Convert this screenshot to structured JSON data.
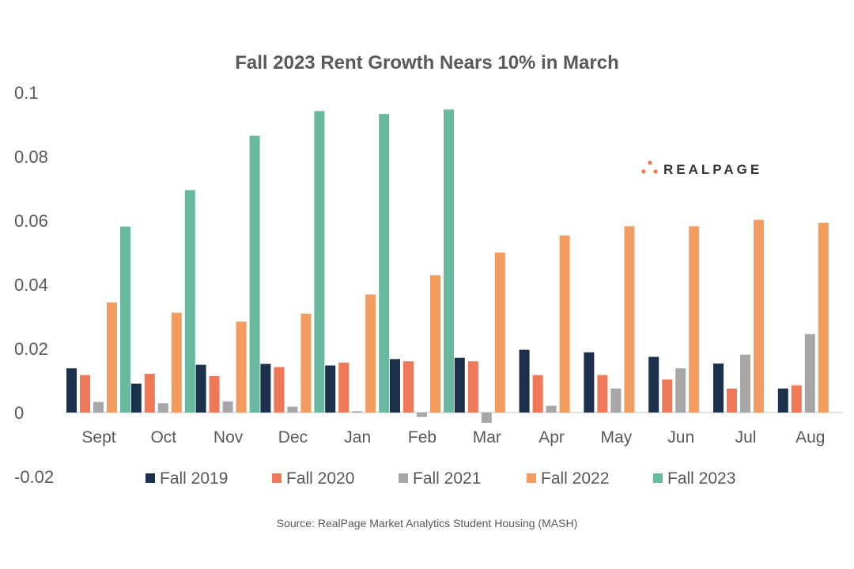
{
  "chart_data": {
    "type": "bar",
    "title": "Fall 2023 Rent Growth Nears 10% in March",
    "source": "Source: RealPage Market Analytics Student Housing (MASH)",
    "logo_text": "REALPAGE",
    "xlabel": "",
    "ylabel": "",
    "ylim": [
      -0.02,
      0.1
    ],
    "yticks": [
      "0.1",
      "0.08",
      "0.06",
      "0.04",
      "0.02",
      "0",
      "-0.02"
    ],
    "ytick_values": [
      0.1,
      0.08,
      0.06,
      0.04,
      0.02,
      0,
      -0.02
    ],
    "grid": false,
    "legend_position": "bottom",
    "categories": [
      "Sept",
      "Oct",
      "Nov",
      "Dec",
      "Jan",
      "Feb",
      "Mar",
      "Apr",
      "May",
      "Jun",
      "Jul",
      "Aug"
    ],
    "series": [
      {
        "name": "Fall 2019",
        "color": "#1c304c",
        "values": [
          0.0138,
          0.009,
          0.0149,
          0.0152,
          0.0147,
          0.0167,
          0.0171,
          0.0196,
          0.0188,
          0.0174,
          0.0153,
          0.0075
        ]
      },
      {
        "name": "Fall 2020",
        "color": "#ee7858",
        "values": [
          0.0117,
          0.0121,
          0.0114,
          0.0142,
          0.0156,
          0.016,
          0.016,
          0.0117,
          0.0117,
          0.0103,
          0.0075,
          0.0085
        ]
      },
      {
        "name": "Fall 2021",
        "color": "#a6a6a6",
        "values": [
          0.0033,
          0.0029,
          0.0035,
          0.0018,
          0.0004,
          -0.0014,
          -0.0032,
          0.0021,
          0.0075,
          0.0138,
          0.0181,
          0.0245
        ]
      },
      {
        "name": "Fall 2022",
        "color": "#f29c60",
        "values": [
          0.0344,
          0.0312,
          0.0284,
          0.0309,
          0.0369,
          0.0429,
          0.05,
          0.0553,
          0.0582,
          0.0582,
          0.0602,
          0.0593
        ]
      },
      {
        "name": "Fall 2023",
        "color": "#69b8a0",
        "values": [
          0.0581,
          0.0695,
          0.0865,
          0.0942,
          0.0933,
          0.0947,
          null,
          null,
          null,
          null,
          null,
          null
        ]
      }
    ]
  }
}
